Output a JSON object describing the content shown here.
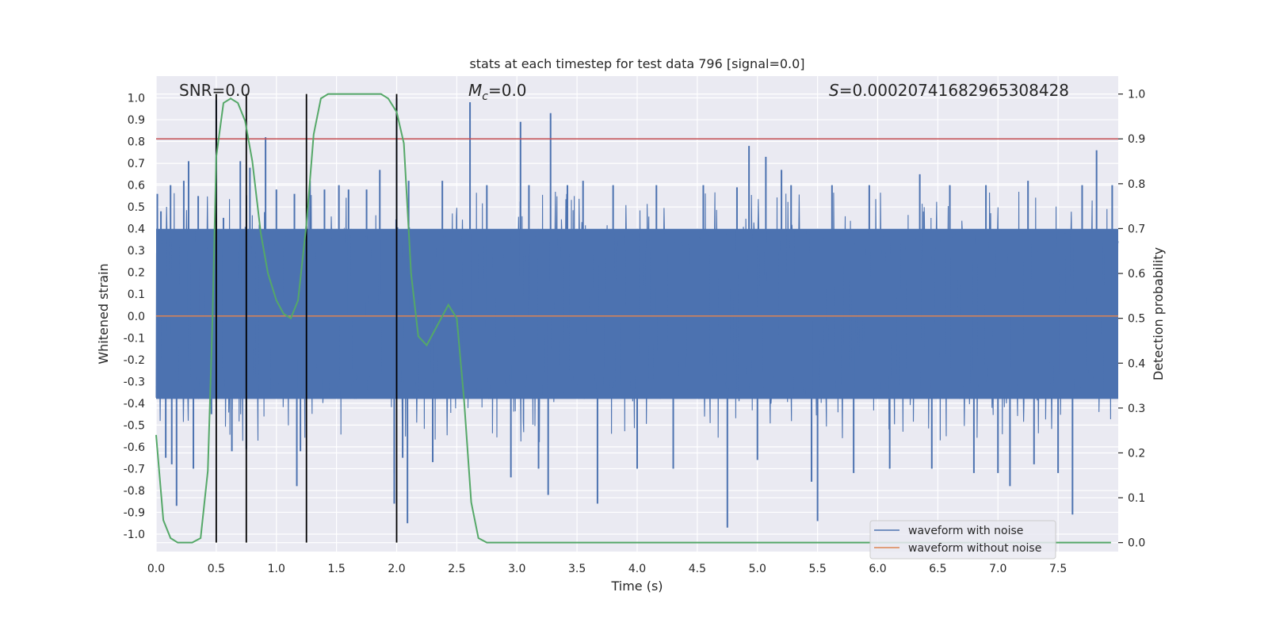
{
  "chart_data": {
    "type": "line",
    "title": "stats at each timestep for test data 796 [signal=0.0]",
    "xlabel": "Time (s)",
    "ylabel_left": "Whitened strain",
    "ylabel_right": "Detection probability",
    "xlim": [
      0.0,
      8.0
    ],
    "ylim_left": [
      -1.08,
      1.1
    ],
    "ylim_right": [
      -0.02,
      1.04
    ],
    "x_ticks": [
      0.0,
      0.5,
      1.0,
      1.5,
      2.0,
      2.5,
      3.0,
      3.5,
      4.0,
      4.5,
      5.0,
      5.5,
      6.0,
      6.5,
      7.0,
      7.5
    ],
    "x_tick_labels": [
      "0.0",
      "0.5",
      "1.0",
      "1.5",
      "2.0",
      "2.5",
      "3.0",
      "3.5",
      "4.0",
      "4.5",
      "5.0",
      "5.5",
      "6.0",
      "6.5",
      "7.0",
      "7.5"
    ],
    "y_left_ticks": [
      1.0,
      0.9,
      0.8,
      0.7,
      0.6,
      0.5,
      0.4,
      0.3,
      0.2,
      0.1,
      0.0,
      -0.1,
      -0.2,
      -0.3,
      -0.4,
      -0.5,
      -0.6,
      -0.7,
      -0.8,
      -0.9,
      -1.0
    ],
    "y_left_tick_labels": [
      "1.0",
      "0.9",
      "0.8",
      "0.7",
      "0.6",
      "0.5",
      "0.4",
      "0.3",
      "0.2",
      "0.1",
      "0.0",
      "-0.1",
      "-0.2",
      "-0.3",
      "-0.4",
      "-0.5",
      "-0.6",
      "-0.7",
      "-0.8",
      "-0.9",
      "-1.0"
    ],
    "y_right_ticks": [
      1.0,
      0.9,
      0.8,
      0.7,
      0.6,
      0.5,
      0.4,
      0.3,
      0.2,
      0.1,
      0.0
    ],
    "y_right_tick_labels": [
      "1.0",
      "0.9",
      "0.8",
      "0.7",
      "0.6",
      "0.5",
      "0.4",
      "0.3",
      "0.2",
      "0.1",
      "0.0"
    ],
    "grid": true,
    "legend_position": "lower-right",
    "annotations": {
      "snr": "SNR=0.0",
      "mc_symbol": "M",
      "mc_sub": "c",
      "mc_value": "=0.0",
      "s_symbol": "S",
      "s_value": "=0.00020741682965308428"
    },
    "threshold_right": 0.9,
    "vertical_lines_x": [
      0.5,
      0.75,
      1.25,
      2.0
    ],
    "series": [
      {
        "name": "waveform with noise",
        "color": "#4c72b0",
        "axis": "left",
        "noise_band": [
          -0.38,
          0.4
        ],
        "spikes": [
          [
            0.01,
            0.56
          ],
          [
            0.04,
            0.48
          ],
          [
            0.08,
            -0.65
          ],
          [
            0.12,
            0.6
          ],
          [
            0.13,
            -0.68
          ],
          [
            0.17,
            -0.87
          ],
          [
            0.23,
            0.62
          ],
          [
            0.27,
            0.71
          ],
          [
            0.31,
            -0.7
          ],
          [
            0.35,
            0.55
          ],
          [
            0.46,
            -0.45
          ],
          [
            0.5,
            0.99
          ],
          [
            0.56,
            0.45
          ],
          [
            0.63,
            -0.62
          ],
          [
            0.7,
            0.71
          ],
          [
            0.75,
            -0.61
          ],
          [
            0.78,
            0.68
          ],
          [
            0.91,
            0.82
          ],
          [
            1.0,
            0.58
          ],
          [
            1.15,
            0.56
          ],
          [
            1.17,
            -0.78
          ],
          [
            1.2,
            -0.62
          ],
          [
            1.28,
            0.62
          ],
          [
            1.4,
            0.58
          ],
          [
            1.52,
            0.6
          ],
          [
            1.6,
            0.58
          ],
          [
            1.75,
            0.58
          ],
          [
            1.86,
            0.67
          ],
          [
            1.98,
            -0.72
          ],
          [
            1.98,
            -0.86
          ],
          [
            2.0,
            1.0
          ],
          [
            2.05,
            -0.65
          ],
          [
            2.09,
            -0.95
          ],
          [
            2.1,
            0.62
          ],
          [
            2.3,
            -0.67
          ],
          [
            2.38,
            0.62
          ],
          [
            2.61,
            0.98
          ],
          [
            2.75,
            0.6
          ],
          [
            2.95,
            -0.74
          ],
          [
            3.03,
            0.89
          ],
          [
            3.1,
            0.6
          ],
          [
            3.18,
            -0.7
          ],
          [
            3.26,
            -0.82
          ],
          [
            3.28,
            0.93
          ],
          [
            3.42,
            0.6
          ],
          [
            3.55,
            0.62
          ],
          [
            3.67,
            -0.86
          ],
          [
            3.8,
            0.6
          ],
          [
            4.0,
            -0.7
          ],
          [
            4.16,
            0.6
          ],
          [
            4.3,
            -0.7
          ],
          [
            4.55,
            0.6
          ],
          [
            4.75,
            -0.97
          ],
          [
            4.83,
            0.59
          ],
          [
            4.93,
            0.78
          ],
          [
            5.0,
            -0.66
          ],
          [
            5.07,
            0.73
          ],
          [
            5.2,
            0.67
          ],
          [
            5.28,
            0.6
          ],
          [
            5.45,
            -0.76
          ],
          [
            5.5,
            -0.94
          ],
          [
            5.62,
            0.6
          ],
          [
            5.8,
            -0.72
          ],
          [
            5.93,
            0.6
          ],
          [
            6.1,
            -0.7
          ],
          [
            6.35,
            0.65
          ],
          [
            6.45,
            -0.7
          ],
          [
            6.6,
            0.6
          ],
          [
            6.8,
            -0.72
          ],
          [
            6.9,
            0.6
          ],
          [
            7.0,
            -0.72
          ],
          [
            7.1,
            -0.78
          ],
          [
            7.25,
            0.62
          ],
          [
            7.3,
            -0.68
          ],
          [
            7.5,
            -0.72
          ],
          [
            7.62,
            -0.91
          ],
          [
            7.7,
            0.6
          ],
          [
            7.82,
            0.76
          ],
          [
            7.95,
            0.6
          ]
        ]
      },
      {
        "name": "waveform without noise",
        "color": "#dd8452",
        "axis": "left",
        "x": [
          0.0,
          8.0
        ],
        "y": [
          0.0,
          0.0
        ]
      },
      {
        "name": "",
        "color": "#55a868",
        "axis": "right",
        "x": [
          0.0,
          0.06,
          0.12,
          0.18,
          0.25,
          0.3,
          0.37,
          0.43,
          0.47,
          0.5,
          0.56,
          0.62,
          0.68,
          0.74,
          0.8,
          0.87,
          0.93,
          1.0,
          1.06,
          1.12,
          1.18,
          1.25,
          1.31,
          1.37,
          1.43,
          1.5,
          1.75,
          1.87,
          1.93,
          2.0,
          2.06,
          2.12,
          2.18,
          2.25,
          2.31,
          2.37,
          2.43,
          2.5,
          2.56,
          2.62,
          2.68,
          2.75,
          3.0,
          4.0,
          5.0,
          6.0,
          7.0,
          7.94
        ],
        "y": [
          0.24,
          0.05,
          0.01,
          0.0,
          0.0,
          0.0,
          0.01,
          0.16,
          0.51,
          0.86,
          0.98,
          0.99,
          0.98,
          0.94,
          0.85,
          0.69,
          0.6,
          0.54,
          0.51,
          0.5,
          0.54,
          0.71,
          0.91,
          0.99,
          1.0,
          1.0,
          1.0,
          1.0,
          0.99,
          0.96,
          0.89,
          0.6,
          0.46,
          0.44,
          0.47,
          0.5,
          0.53,
          0.5,
          0.32,
          0.09,
          0.01,
          0.0,
          0.0,
          0.0,
          0.0,
          0.0,
          0.0,
          0.0
        ]
      }
    ]
  }
}
